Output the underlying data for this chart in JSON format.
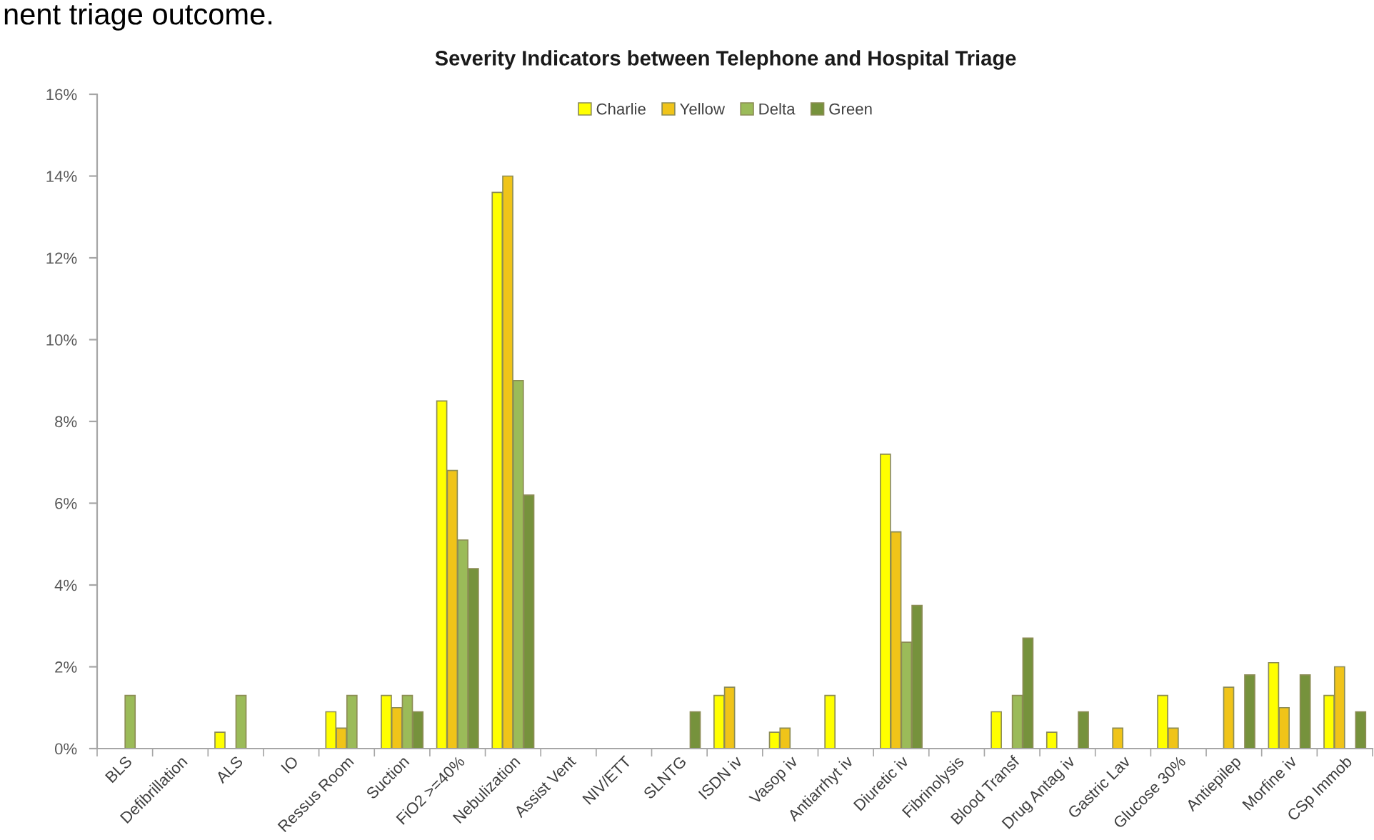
{
  "chart_data": {
    "type": "bar",
    "title": "Severity Indicators between Telephone and Hospital Triage",
    "annotations": [
      "nent triage outcome."
    ],
    "categories": [
      "BLS",
      "Defibrillation",
      "ALS",
      "IO",
      "Ressus Room",
      "Suction",
      "FiO2 >=40%",
      "Nebulization",
      "Assist Vent",
      "NIV/ETT",
      "SLNTG",
      "ISDN iv",
      "Vasop iv",
      "Antiarrhyt iv",
      "Diuretic iv",
      "Fibrinolysis",
      "Blood Transf",
      "Drug Antag iv",
      "Gastric Lav",
      "Glucose 30%",
      "Antiepilep",
      "Morfine iv",
      "CSp Immob"
    ],
    "series": [
      {
        "name": "Charlie",
        "color": "#ffff00",
        "values": [
          null,
          null,
          0.4,
          null,
          0.9,
          1.3,
          8.5,
          13.6,
          null,
          null,
          null,
          1.3,
          0.4,
          1.3,
          7.2,
          null,
          0.9,
          0.4,
          null,
          1.3,
          null,
          2.1,
          1.3
        ]
      },
      {
        "name": "Yellow",
        "color": "#f0c419",
        "values": [
          null,
          null,
          null,
          null,
          0.5,
          1.0,
          6.8,
          14.0,
          null,
          null,
          null,
          1.5,
          0.5,
          null,
          5.3,
          null,
          null,
          null,
          0.5,
          0.5,
          1.5,
          1.0,
          2.0
        ]
      },
      {
        "name": "Delta",
        "color": "#9bbb59",
        "values": [
          1.3,
          null,
          1.3,
          null,
          1.3,
          1.3,
          5.1,
          9.0,
          null,
          null,
          null,
          null,
          null,
          null,
          2.6,
          null,
          1.3,
          null,
          null,
          null,
          null,
          null,
          null
        ]
      },
      {
        "name": "Green",
        "color": "#76923c",
        "values": [
          null,
          null,
          null,
          null,
          null,
          0.9,
          4.4,
          6.2,
          null,
          null,
          0.9,
          null,
          null,
          null,
          3.5,
          null,
          2.7,
          0.9,
          null,
          null,
          1.8,
          1.8,
          0.9
        ]
      }
    ],
    "ylim": [
      0,
      16
    ],
    "yticks": [
      {
        "value": 0,
        "label": "0%"
      },
      {
        "value": 2,
        "label": "2%"
      },
      {
        "value": 4,
        "label": "4%"
      },
      {
        "value": 6,
        "label": "6%"
      },
      {
        "value": 8,
        "label": "8%"
      },
      {
        "value": 10,
        "label": "10%"
      },
      {
        "value": 12,
        "label": "12%"
      },
      {
        "value": 14,
        "label": "14%"
      },
      {
        "value": 16,
        "label": "16%"
      }
    ],
    "legend": "top"
  }
}
